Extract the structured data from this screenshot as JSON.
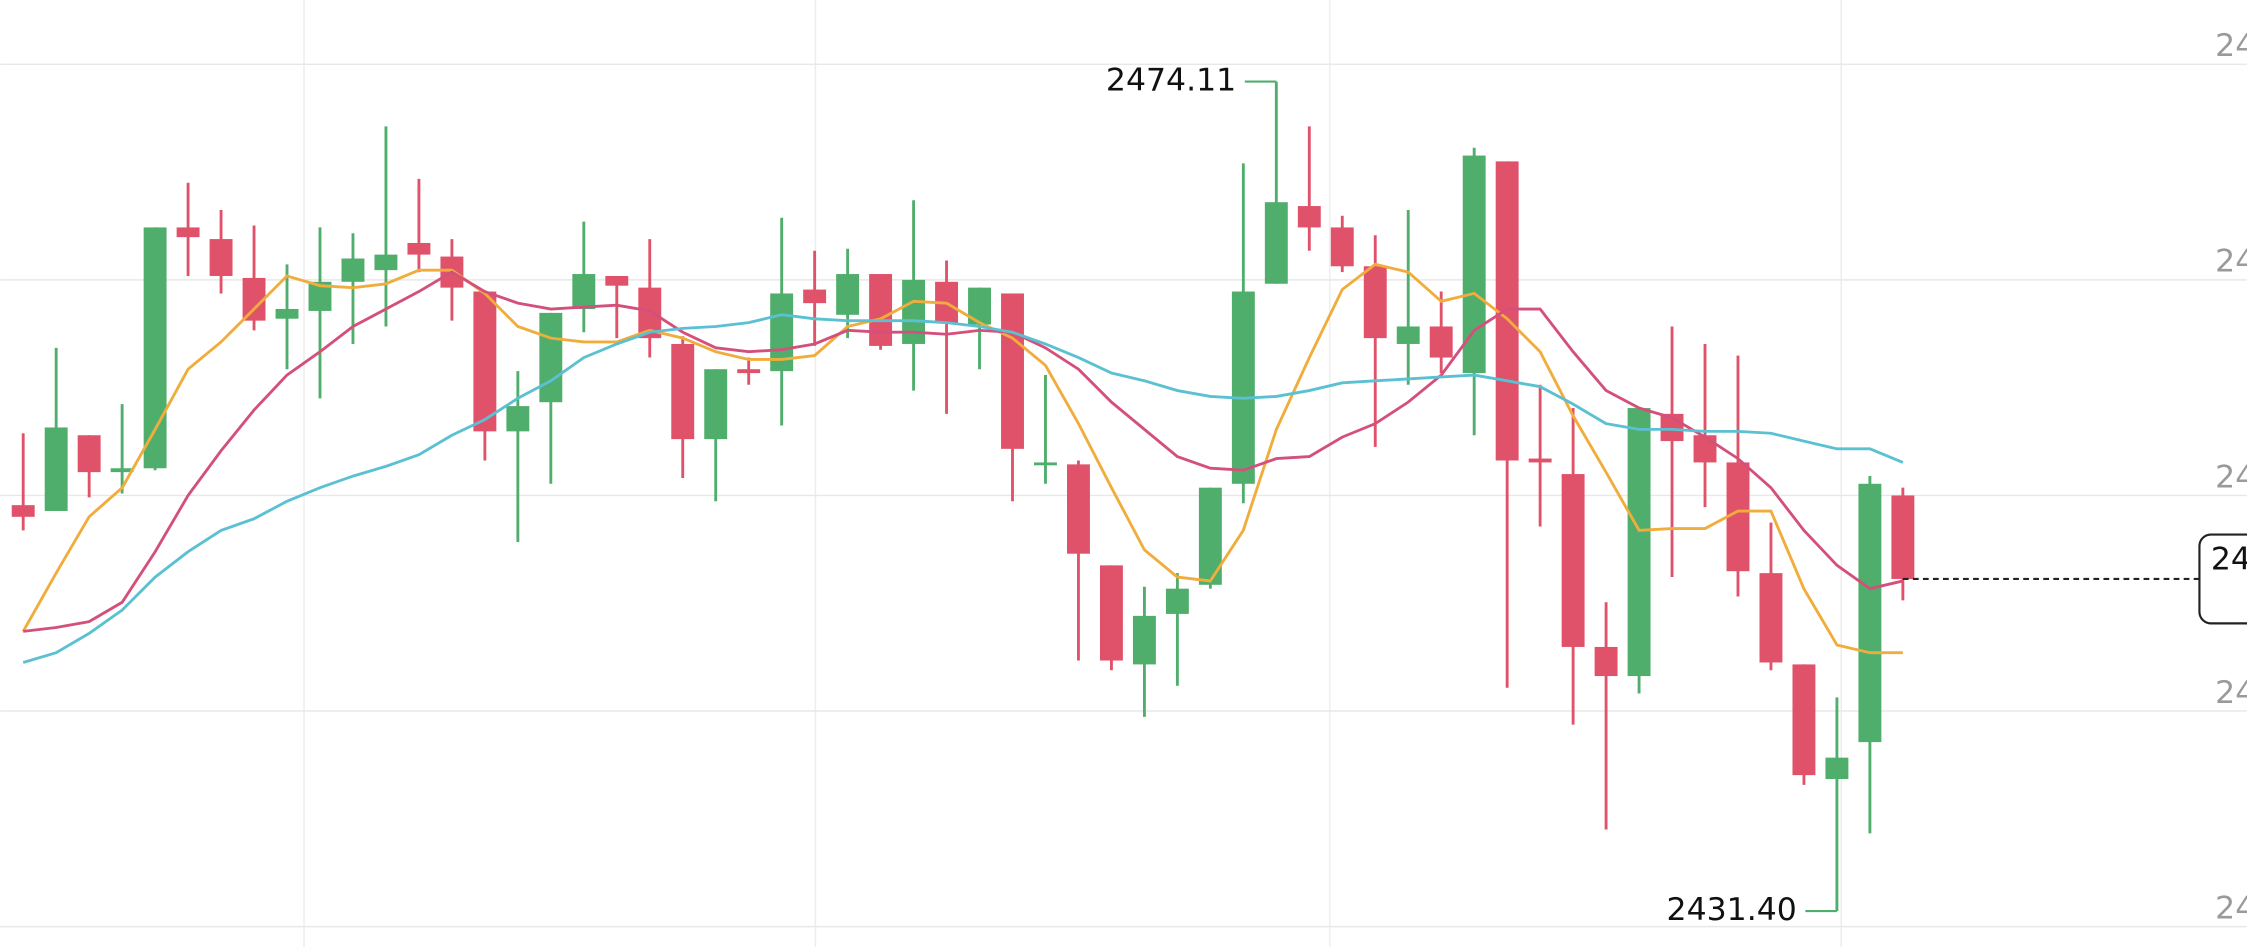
{
  "chart_data": {
    "type": "candlestick",
    "colors": {
      "up": "#50ae6c",
      "down": "#e0526a"
    },
    "open": [
      2452.3,
      2452.0,
      2455.9,
      2454.0,
      2454.2,
      2466.6,
      2466.0,
      2464.0,
      2461.9,
      2462.3,
      2463.8,
      2464.4,
      2465.8,
      2465.1,
      2463.3,
      2456.1,
      2457.6,
      2462.4,
      2464.1,
      2463.5,
      2460.6,
      2455.7,
      2459.3,
      2459.2,
      2463.4,
      2462.1,
      2464.2,
      2460.6,
      2463.8,
      2461.6,
      2463.2,
      2454.4,
      2454.4,
      2449.2,
      2444.1,
      2446.7,
      2448.2,
      2453.4,
      2463.7,
      2467.7,
      2466.6,
      2464.6,
      2460.6,
      2461.5,
      2459.1,
      2470.0,
      2454.7,
      2453.9,
      2445.0,
      2443.5,
      2457.0,
      2455.9,
      2454.5,
      2448.8,
      2444.1,
      2438.2,
      2440.1,
      2452.8
    ],
    "high": [
      2456.0,
      2460.4,
      2455.9,
      2457.5,
      2466.6,
      2468.9,
      2467.5,
      2466.7,
      2464.7,
      2466.6,
      2466.3,
      2471.8,
      2469.1,
      2466.0,
      2463.3,
      2459.2,
      2462.2,
      2466.9,
      2464.1,
      2466.0,
      2461.0,
      2459.3,
      2459.9,
      2467.1,
      2465.4,
      2465.5,
      2464.2,
      2468.0,
      2464.9,
      2463.5,
      2463.2,
      2459.0,
      2454.6,
      2449.2,
      2448.1,
      2448.8,
      2453.2,
      2469.9,
      2474.11,
      2471.8,
      2467.2,
      2466.2,
      2467.5,
      2463.3,
      2470.7,
      2470.0,
      2458.5,
      2457.3,
      2447.3,
      2457.3,
      2461.5,
      2460.6,
      2460.0,
      2451.4,
      2444.1,
      2442.4,
      2453.8,
      2453.2
    ],
    "low": [
      2451.0,
      2452.0,
      2452.7,
      2452.9,
      2454.1,
      2464.1,
      2463.2,
      2461.3,
      2459.3,
      2457.8,
      2460.6,
      2461.5,
      2464.3,
      2461.8,
      2454.6,
      2450.4,
      2453.4,
      2461.2,
      2460.9,
      2459.9,
      2453.7,
      2452.5,
      2458.5,
      2456.4,
      2460.5,
      2460.9,
      2460.3,
      2458.2,
      2457.0,
      2459.3,
      2452.5,
      2453.4,
      2444.3,
      2443.8,
      2441.4,
      2443.0,
      2448.0,
      2452.4,
      2463.7,
      2465.4,
      2464.3,
      2455.3,
      2458.5,
      2459.1,
      2455.9,
      2442.9,
      2451.2,
      2441.0,
      2435.6,
      2442.6,
      2448.6,
      2452.2,
      2447.6,
      2443.8,
      2437.9,
      2431.4,
      2435.4,
      2447.4
    ],
    "close": [
      2451.7,
      2456.3,
      2454.0,
      2454.2,
      2466.6,
      2466.1,
      2464.1,
      2461.8,
      2462.4,
      2463.8,
      2465.0,
      2465.2,
      2465.2,
      2463.5,
      2456.1,
      2457.4,
      2462.2,
      2464.2,
      2463.6,
      2460.9,
      2455.7,
      2459.3,
      2459.1,
      2463.2,
      2462.7,
      2464.2,
      2460.5,
      2463.9,
      2461.7,
      2463.5,
      2455.2,
      2454.5,
      2449.8,
      2444.3,
      2446.6,
      2448.0,
      2453.2,
      2463.3,
      2467.9,
      2466.6,
      2464.6,
      2460.9,
      2461.5,
      2459.9,
      2470.3,
      2454.6,
      2454.5,
      2445.0,
      2443.5,
      2457.3,
      2455.6,
      2454.5,
      2448.9,
      2444.2,
      2438.4,
      2439.3,
      2453.4,
      2448.5
    ],
    "lines": [
      {
        "color": "#f0ad3c",
        "values": [
          2445.8,
          2448.8,
          2451.7,
          2453.2,
          2456.2,
          2459.3,
          2460.7,
          2462.4,
          2464.1,
          2463.6,
          2463.5,
          2463.7,
          2464.4,
          2464.4,
          2463.2,
          2461.5,
          2460.9,
          2460.7,
          2460.7,
          2461.3,
          2460.9,
          2460.2,
          2459.8,
          2459.8,
          2460.0,
          2461.5,
          2461.9,
          2462.8,
          2462.7,
          2461.7,
          2460.9,
          2459.5,
          2456.5,
          2453.2,
          2450.0,
          2448.6,
          2448.4,
          2451.0,
          2456.2,
          2459.9,
          2463.4,
          2464.7,
          2464.3,
          2462.8,
          2463.2,
          2461.9,
          2460.2,
          2456.9,
          2454.0,
          2451.0,
          2451.1,
          2451.1,
          2452.0,
          2452.0,
          2448.0,
          2445.1,
          2444.7,
          2444.7
        ]
      },
      {
        "color": "#d4507c",
        "values": [
          2445.8,
          2446.0,
          2446.3,
          2447.3,
          2449.9,
          2452.8,
          2455.1,
          2457.2,
          2459.0,
          2460.2,
          2461.5,
          2462.4,
          2463.3,
          2464.3,
          2463.3,
          2462.7,
          2462.4,
          2462.5,
          2462.6,
          2462.3,
          2461.2,
          2460.4,
          2460.2,
          2460.3,
          2460.6,
          2461.3,
          2461.2,
          2461.2,
          2461.1,
          2461.3,
          2461.2,
          2460.4,
          2459.3,
          2457.6,
          2456.2,
          2454.8,
          2454.2,
          2454.1,
          2454.7,
          2454.8,
          2455.8,
          2456.5,
          2457.6,
          2459.0,
          2461.3,
          2462.4,
          2462.4,
          2460.2,
          2458.2,
          2457.3,
          2456.8,
          2455.8,
          2454.7,
          2453.2,
          2451.0,
          2449.2,
          2448.0,
          2448.4
        ]
      },
      {
        "color": "#5bc0d2",
        "values": [
          2444.2,
          2444.7,
          2445.7,
          2446.9,
          2448.6,
          2449.9,
          2451.0,
          2451.6,
          2452.5,
          2453.2,
          2453.8,
          2454.3,
          2454.9,
          2455.9,
          2456.7,
          2457.8,
          2458.7,
          2459.9,
          2460.6,
          2461.2,
          2461.4,
          2461.5,
          2461.7,
          2462.1,
          2461.9,
          2461.8,
          2461.8,
          2461.8,
          2461.7,
          2461.5,
          2461.2,
          2460.6,
          2459.9,
          2459.1,
          2458.7,
          2458.2,
          2457.9,
          2457.8,
          2457.9,
          2458.2,
          2458.6,
          2458.7,
          2458.8,
          2458.9,
          2459.0,
          2458.7,
          2458.4,
          2457.5,
          2456.5,
          2456.2,
          2456.2,
          2456.1,
          2456.1,
          2456.0,
          2455.6,
          2455.2,
          2455.2,
          2454.5
        ]
      }
    ],
    "annotations": [
      2474.11,
      {
        "value": 2431.4,
        "label": "2431.40"
      }
    ],
    "last_price_label": "24",
    "ylim": [
      2429.55,
      2478.31
    ],
    "yticks": [
      {
        "value": 2475.0,
        "label": "24"
      },
      {
        "value": 2463.9,
        "label": "24"
      },
      {
        "value": 2452.8,
        "label": "24"
      },
      {
        "value": 2441.7,
        "label": "24"
      },
      {
        "value": 2430.6,
        "label": "24"
      }
    ],
    "grid": true
  }
}
